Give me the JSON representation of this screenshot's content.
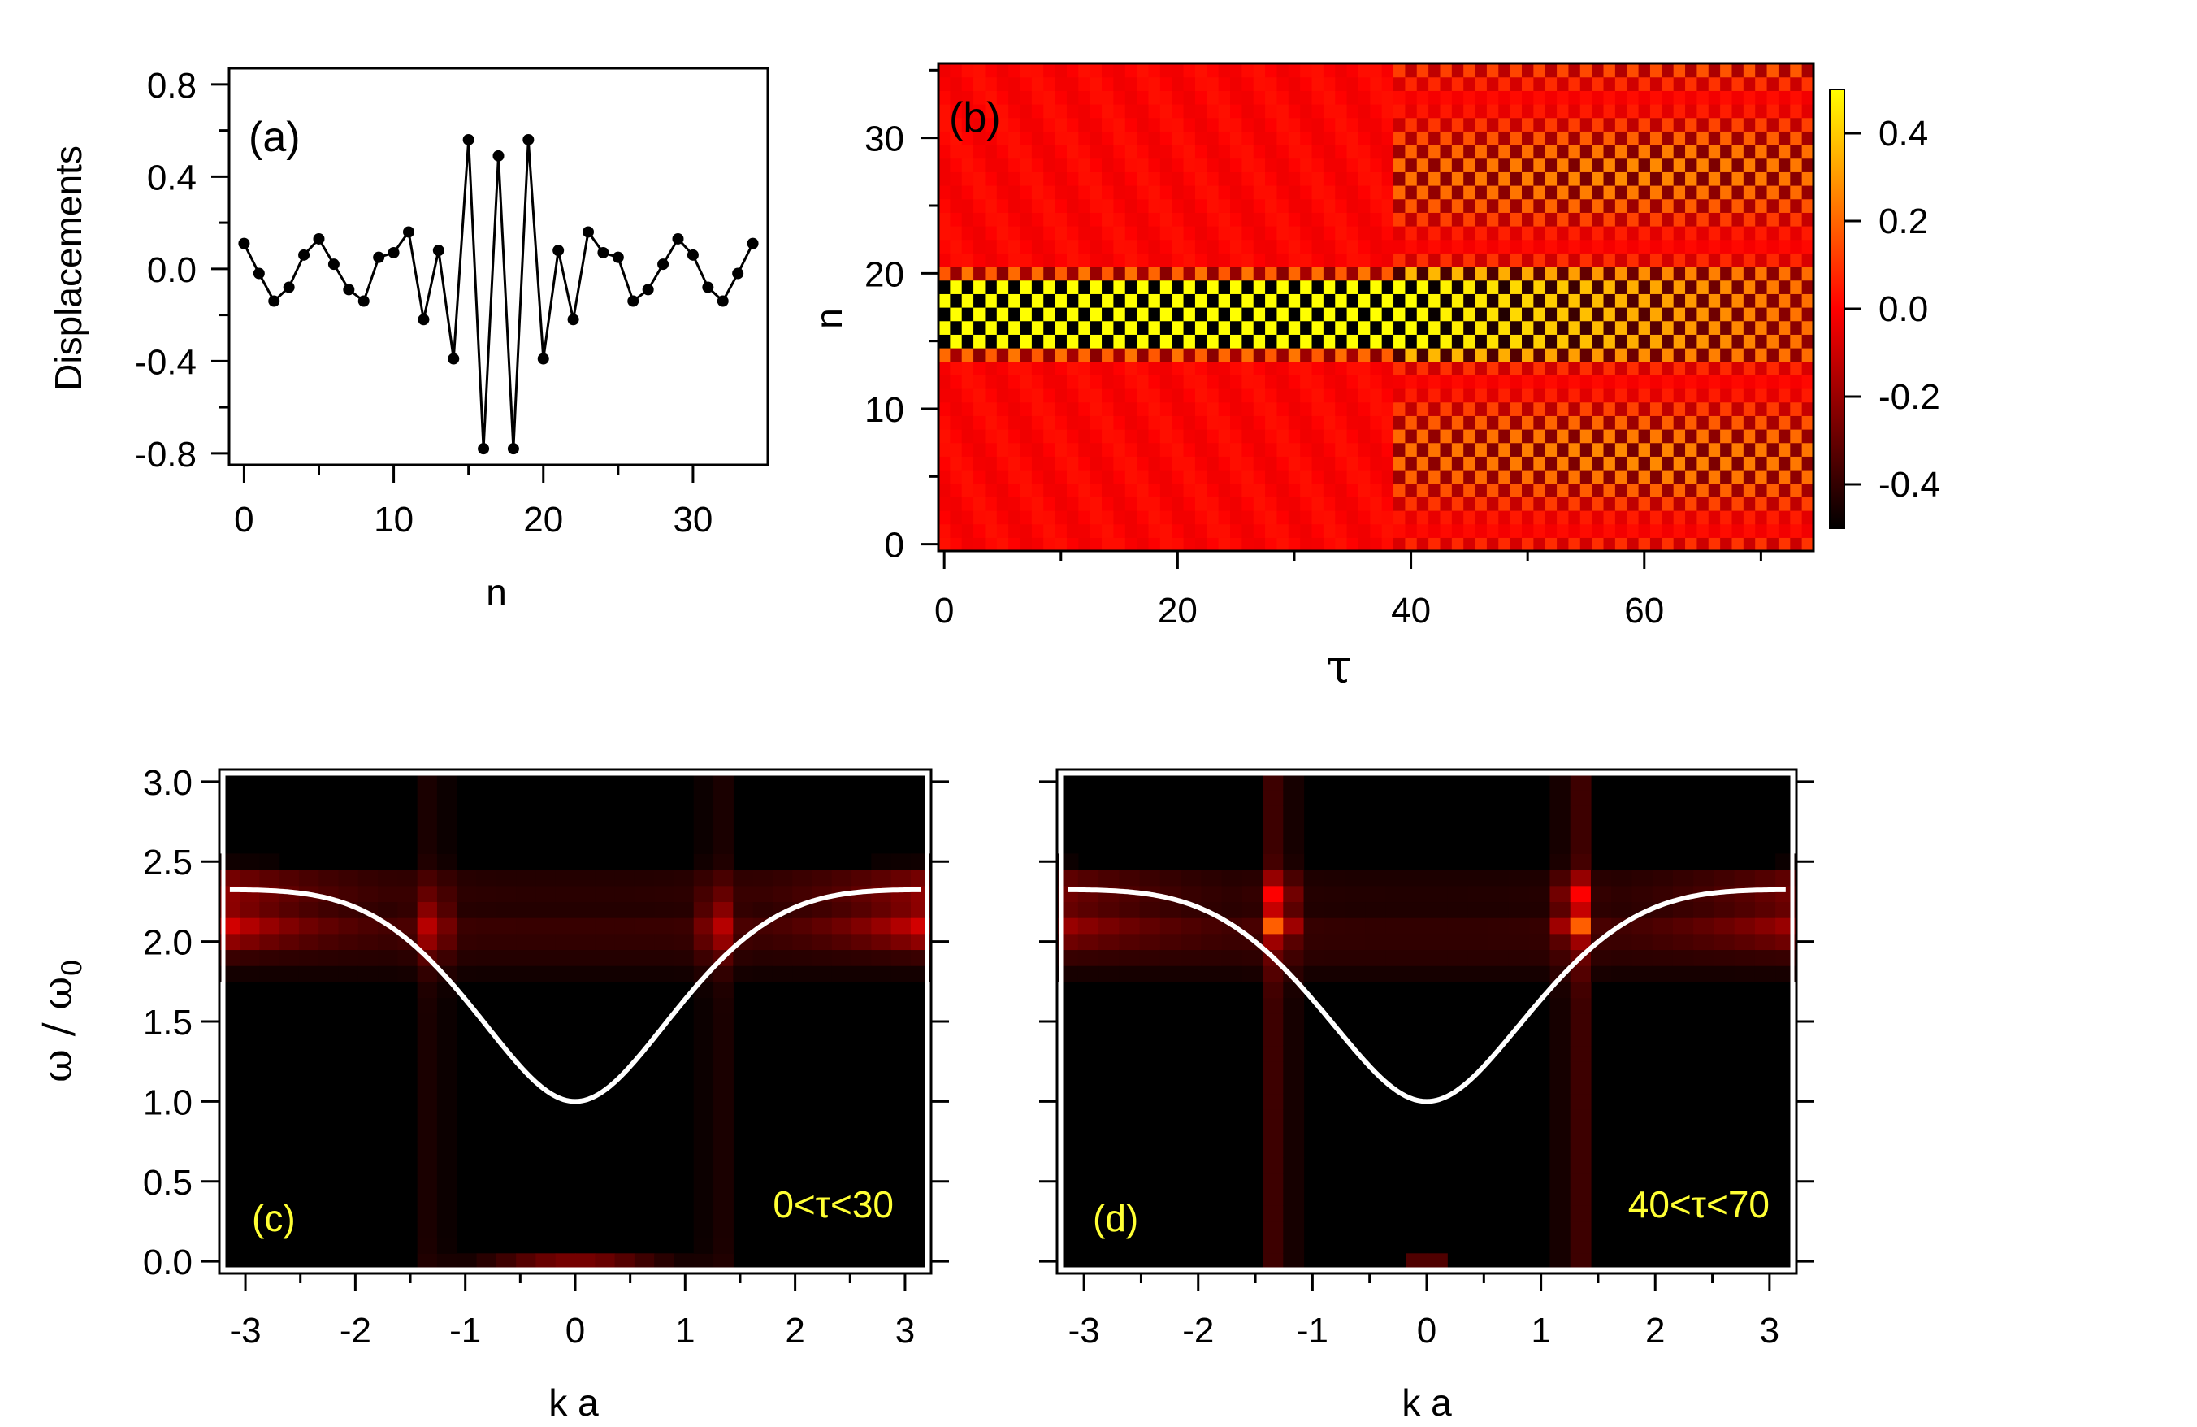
{
  "chart_data": [
    {
      "id": "a",
      "type": "line",
      "panel_label": "(a)",
      "xlabel": "n",
      "ylabel": "Displacements",
      "xlim": [
        -1,
        35
      ],
      "ylim": [
        -0.85,
        0.87
      ],
      "xticks": [
        "0",
        "10",
        "20",
        "30"
      ],
      "yticks": [
        "0.8",
        "0.4",
        "0.0",
        "-0.4",
        "-0.8"
      ],
      "x": [
        0,
        1,
        2,
        3,
        4,
        5,
        6,
        7,
        8,
        9,
        10,
        11,
        12,
        13,
        14,
        15,
        16,
        17,
        18,
        19,
        20,
        21,
        22,
        23,
        24,
        25,
        26,
        27,
        28,
        29,
        30,
        31,
        32,
        33,
        34
      ],
      "y": [
        0.11,
        -0.02,
        -0.14,
        -0.08,
        0.06,
        0.13,
        0.02,
        -0.09,
        -0.14,
        0.05,
        0.07,
        0.16,
        -0.22,
        0.08,
        -0.39,
        0.56,
        -0.78,
        0.49,
        -0.78,
        0.56,
        -0.39,
        0.08,
        -0.22,
        0.16,
        0.07,
        0.05,
        -0.14,
        -0.09,
        0.02,
        0.13,
        0.06,
        -0.08,
        -0.14,
        -0.02,
        0.11
      ],
      "markers": true,
      "color": "#000000"
    },
    {
      "id": "b",
      "type": "heatmap",
      "panel_label": "(b)",
      "xlabel": "τ",
      "ylabel": "n",
      "xlim": [
        -0.5,
        74.5
      ],
      "ylim": [
        -0.5,
        35.5
      ],
      "xticks": [
        "0",
        "20",
        "40",
        "60"
      ],
      "yticks": [
        "0",
        "10",
        "20",
        "30"
      ],
      "colorbar_ticks": [
        "0.4",
        "0.2",
        "0.0",
        "-0.2",
        "-0.4"
      ],
      "colorbar_range": [
        -0.5,
        0.5
      ],
      "colormap": [
        "#000000",
        "#ff0000",
        "#ffff00"
      ],
      "description_values": "oscillating breather localized at n≈15-19 for τ<40, delocalizing into V-shaped wave fronts for τ>40"
    },
    {
      "id": "c",
      "type": "heatmap",
      "panel_label": "(c)",
      "annotation": "0<τ<30",
      "xlabel": "k a",
      "ylabel": "ω / ω0",
      "xlim": [
        -3.2,
        3.2
      ],
      "ylim": [
        -0.05,
        3.05
      ],
      "xticks": [
        "-3",
        "-2",
        "-1",
        "0",
        "1",
        "2",
        "3"
      ],
      "yticks": [
        "3.0",
        "2.5",
        "2.0",
        "1.5",
        "1.0",
        "0.5",
        "0.0"
      ],
      "curve": "dispersion ω=sqrt(1+2(1-cos ka)+... ) white",
      "curve_color": "#ffffff"
    },
    {
      "id": "d",
      "type": "heatmap",
      "panel_label": "(d)",
      "annotation": "40<τ<70",
      "xlabel": "k a",
      "ylabel": "",
      "xlim": [
        -3.2,
        3.2
      ],
      "ylim": [
        -0.05,
        3.05
      ],
      "xticks": [
        "-3",
        "-2",
        "-1",
        "0",
        "1",
        "2",
        "3"
      ],
      "curve_color": "#ffffff"
    }
  ],
  "ylabel_cd_main": "ω / ω",
  "ylabel_cd_sub": "0"
}
